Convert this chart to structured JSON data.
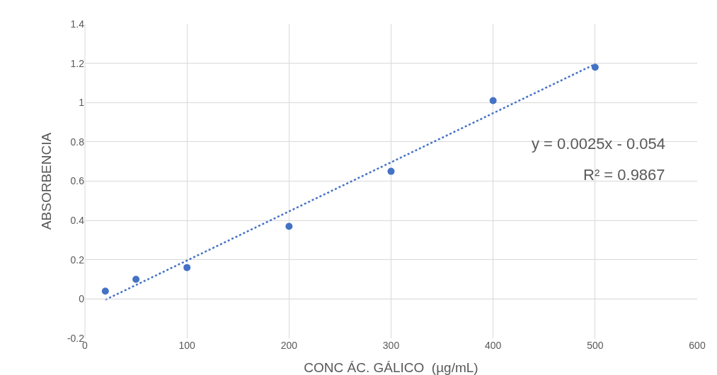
{
  "chart_data": {
    "type": "scatter",
    "xlabel": "CONC ÁC. GÁLICO  (µg/mL)",
    "ylabel": "ABSORBENCIA",
    "x": [
      20,
      50,
      100,
      200,
      300,
      400,
      500
    ],
    "series": [
      {
        "color": "#4472c4",
        "marker": "circle",
        "values": [
          0.04,
          0.1,
          0.16,
          0.37,
          0.65,
          1.01,
          1.18
        ]
      },
      {
        "type": "line",
        "color": "#4472c4",
        "line_style": "dotted",
        "marker": "none",
        "x": [
          20,
          500
        ],
        "values": [
          -0.004,
          1.196
        ]
      }
    ],
    "xlim": [
      0,
      600
    ],
    "xticks": [
      0,
      100,
      200,
      300,
      400,
      500,
      600
    ],
    "ylim": [
      -0.2,
      1.4
    ],
    "yticks": [
      -0.2,
      0,
      0.2,
      0.4,
      0.6,
      0.8,
      1,
      1.2,
      1.4
    ],
    "grid": true,
    "annotations": [
      "y = 0.0025x - 0.054",
      "R² = 0.9867"
    ]
  }
}
